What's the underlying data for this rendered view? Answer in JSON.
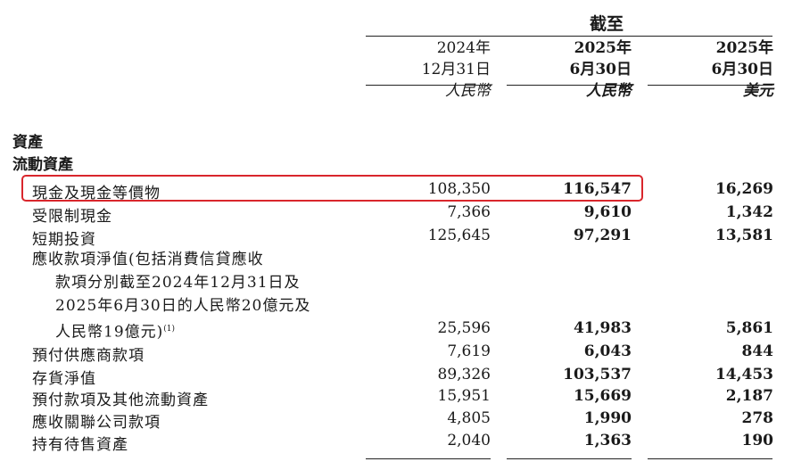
{
  "header": {
    "as_at": "截至",
    "columns": [
      {
        "year": "2024年",
        "date": "12月31日",
        "currency": "人民幣"
      },
      {
        "year": "2025年",
        "date": "6月30日",
        "currency": "人民幣"
      },
      {
        "year": "2025年",
        "date": "6月30日",
        "currency": "美元"
      }
    ]
  },
  "sections": {
    "assets": "資產",
    "current_assets": "流動資產"
  },
  "rows": [
    {
      "label": "現金及現金等價物",
      "v2024": "108,350",
      "v2025rmb": "116,547",
      "v2025usd": "16,269"
    },
    {
      "label": "受限制現金",
      "v2024": "7,366",
      "v2025rmb": "9,610",
      "v2025usd": "1,342"
    },
    {
      "label": "短期投資",
      "v2024": "125,645",
      "v2025rmb": "97,291",
      "v2025usd": "13,581"
    },
    {
      "label_lines": [
        "應收款項淨值(包括消費信貸應收",
        "款項分別截至2024年12月31日及",
        "2025年6月30日的人民幣20億元及",
        "人民幣19億元)"
      ],
      "footnote": "(1)",
      "v2024": "25,596",
      "v2025rmb": "41,983",
      "v2025usd": "5,861"
    },
    {
      "label": "預付供應商款項",
      "v2024": "7,619",
      "v2025rmb": "6,043",
      "v2025usd": "844"
    },
    {
      "label": "存貨淨值",
      "v2024": "89,326",
      "v2025rmb": "103,537",
      "v2025usd": "14,453"
    },
    {
      "label": "預付款項及其他流動資產",
      "v2024": "15,951",
      "v2025rmb": "15,669",
      "v2025usd": "2,187"
    },
    {
      "label": "應收關聯公司款項",
      "v2024": "4,805",
      "v2025rmb": "1,990",
      "v2025usd": "278"
    },
    {
      "label": "持有待售資產",
      "v2024": "2,040",
      "v2025rmb": "1,363",
      "v2025usd": "190"
    }
  ],
  "highlight_color": "#d9262c"
}
